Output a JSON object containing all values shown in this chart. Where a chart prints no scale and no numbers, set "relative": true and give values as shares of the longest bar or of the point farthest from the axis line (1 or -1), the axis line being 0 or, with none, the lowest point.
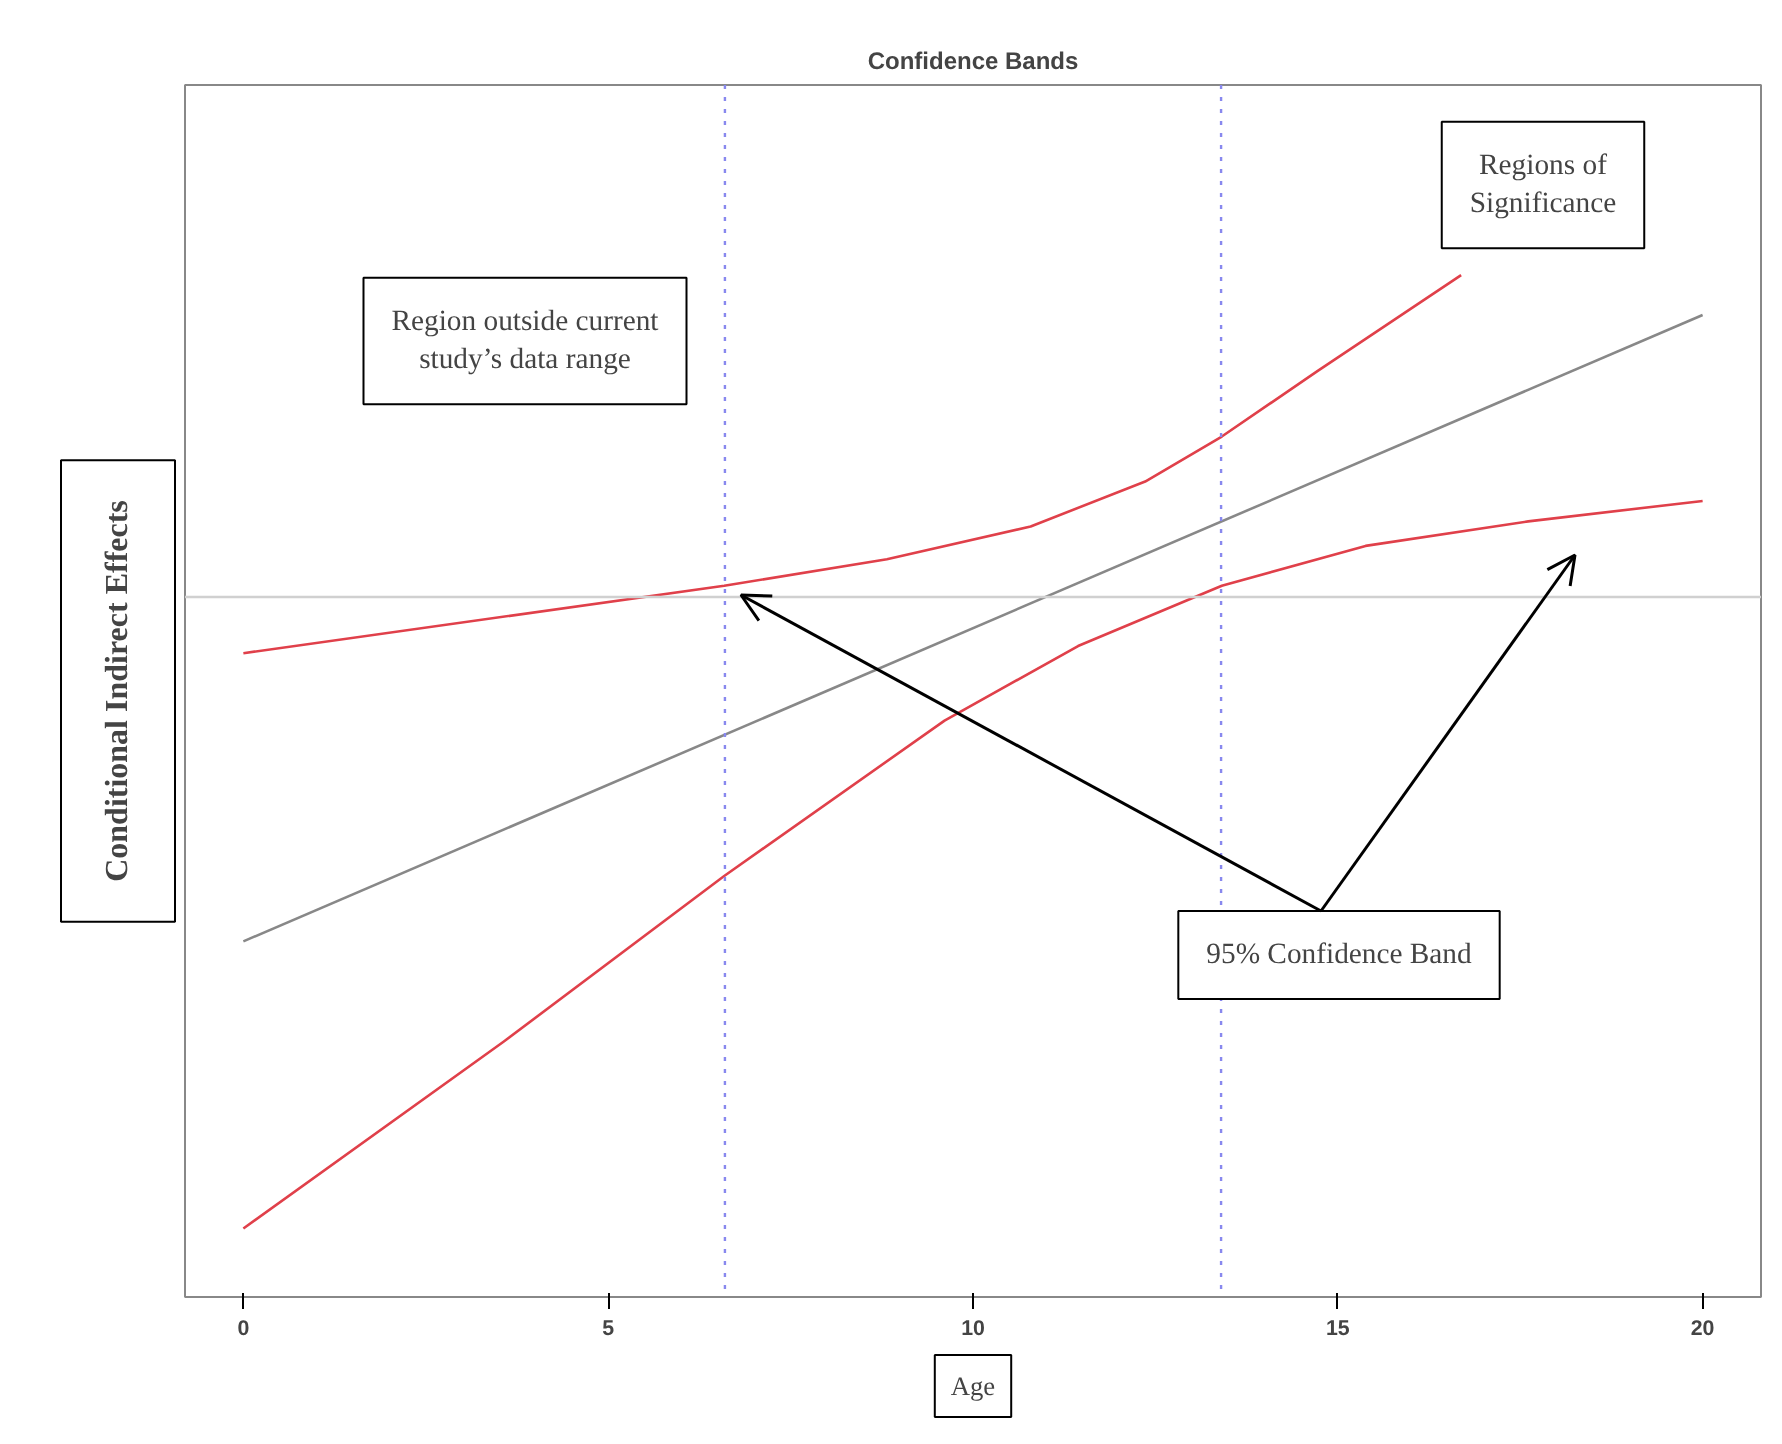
{
  "chart_data": {
    "type": "line",
    "title": "Confidence Bands",
    "xlabel": "Age",
    "ylabel": "Conditional Indirect Effects",
    "relative": true,
    "xlim": [
      -0.8,
      20.8
    ],
    "xticks": [
      0,
      5,
      10,
      15,
      20
    ],
    "grid": false,
    "tick_labels": "x",
    "series": [
      {
        "color": "#888888",
        "x": [
          0,
          20
        ],
        "values": [
          0.348,
          0.961
        ]
      },
      {
        "color": "#e0404a",
        "x": [
          0,
          6.59,
          8.82,
          10.79,
          12.36,
          13.41,
          14.72,
          16.69
        ],
        "values": [
          0.63,
          0.696,
          0.722,
          0.754,
          0.798,
          0.842,
          0.906,
          1.0
        ]
      },
      {
        "color": "#e0404a",
        "x": [
          0,
          3.57,
          6.59,
          9.61,
          11.44,
          13.41,
          15.38,
          17.61,
          20
        ],
        "values": [
          0.067,
          0.25,
          0.412,
          0.564,
          0.637,
          0.696,
          0.735,
          0.759,
          0.779
        ]
      }
    ],
    "ref_lines": [
      {
        "axis": "x",
        "value": 6.6,
        "color": "#8888ee",
        "line_style": "dotted"
      },
      {
        "axis": "x",
        "value": 13.4,
        "color": "#8888ee",
        "line_style": "dotted"
      },
      {
        "axis": "y",
        "value": 0.685,
        "color": "#d0d0d0",
        "line_style": "solid"
      }
    ],
    "annotations": [
      "Region outside current study’s data range",
      "Regions of Significance",
      "95% Confidence Band"
    ]
  }
}
